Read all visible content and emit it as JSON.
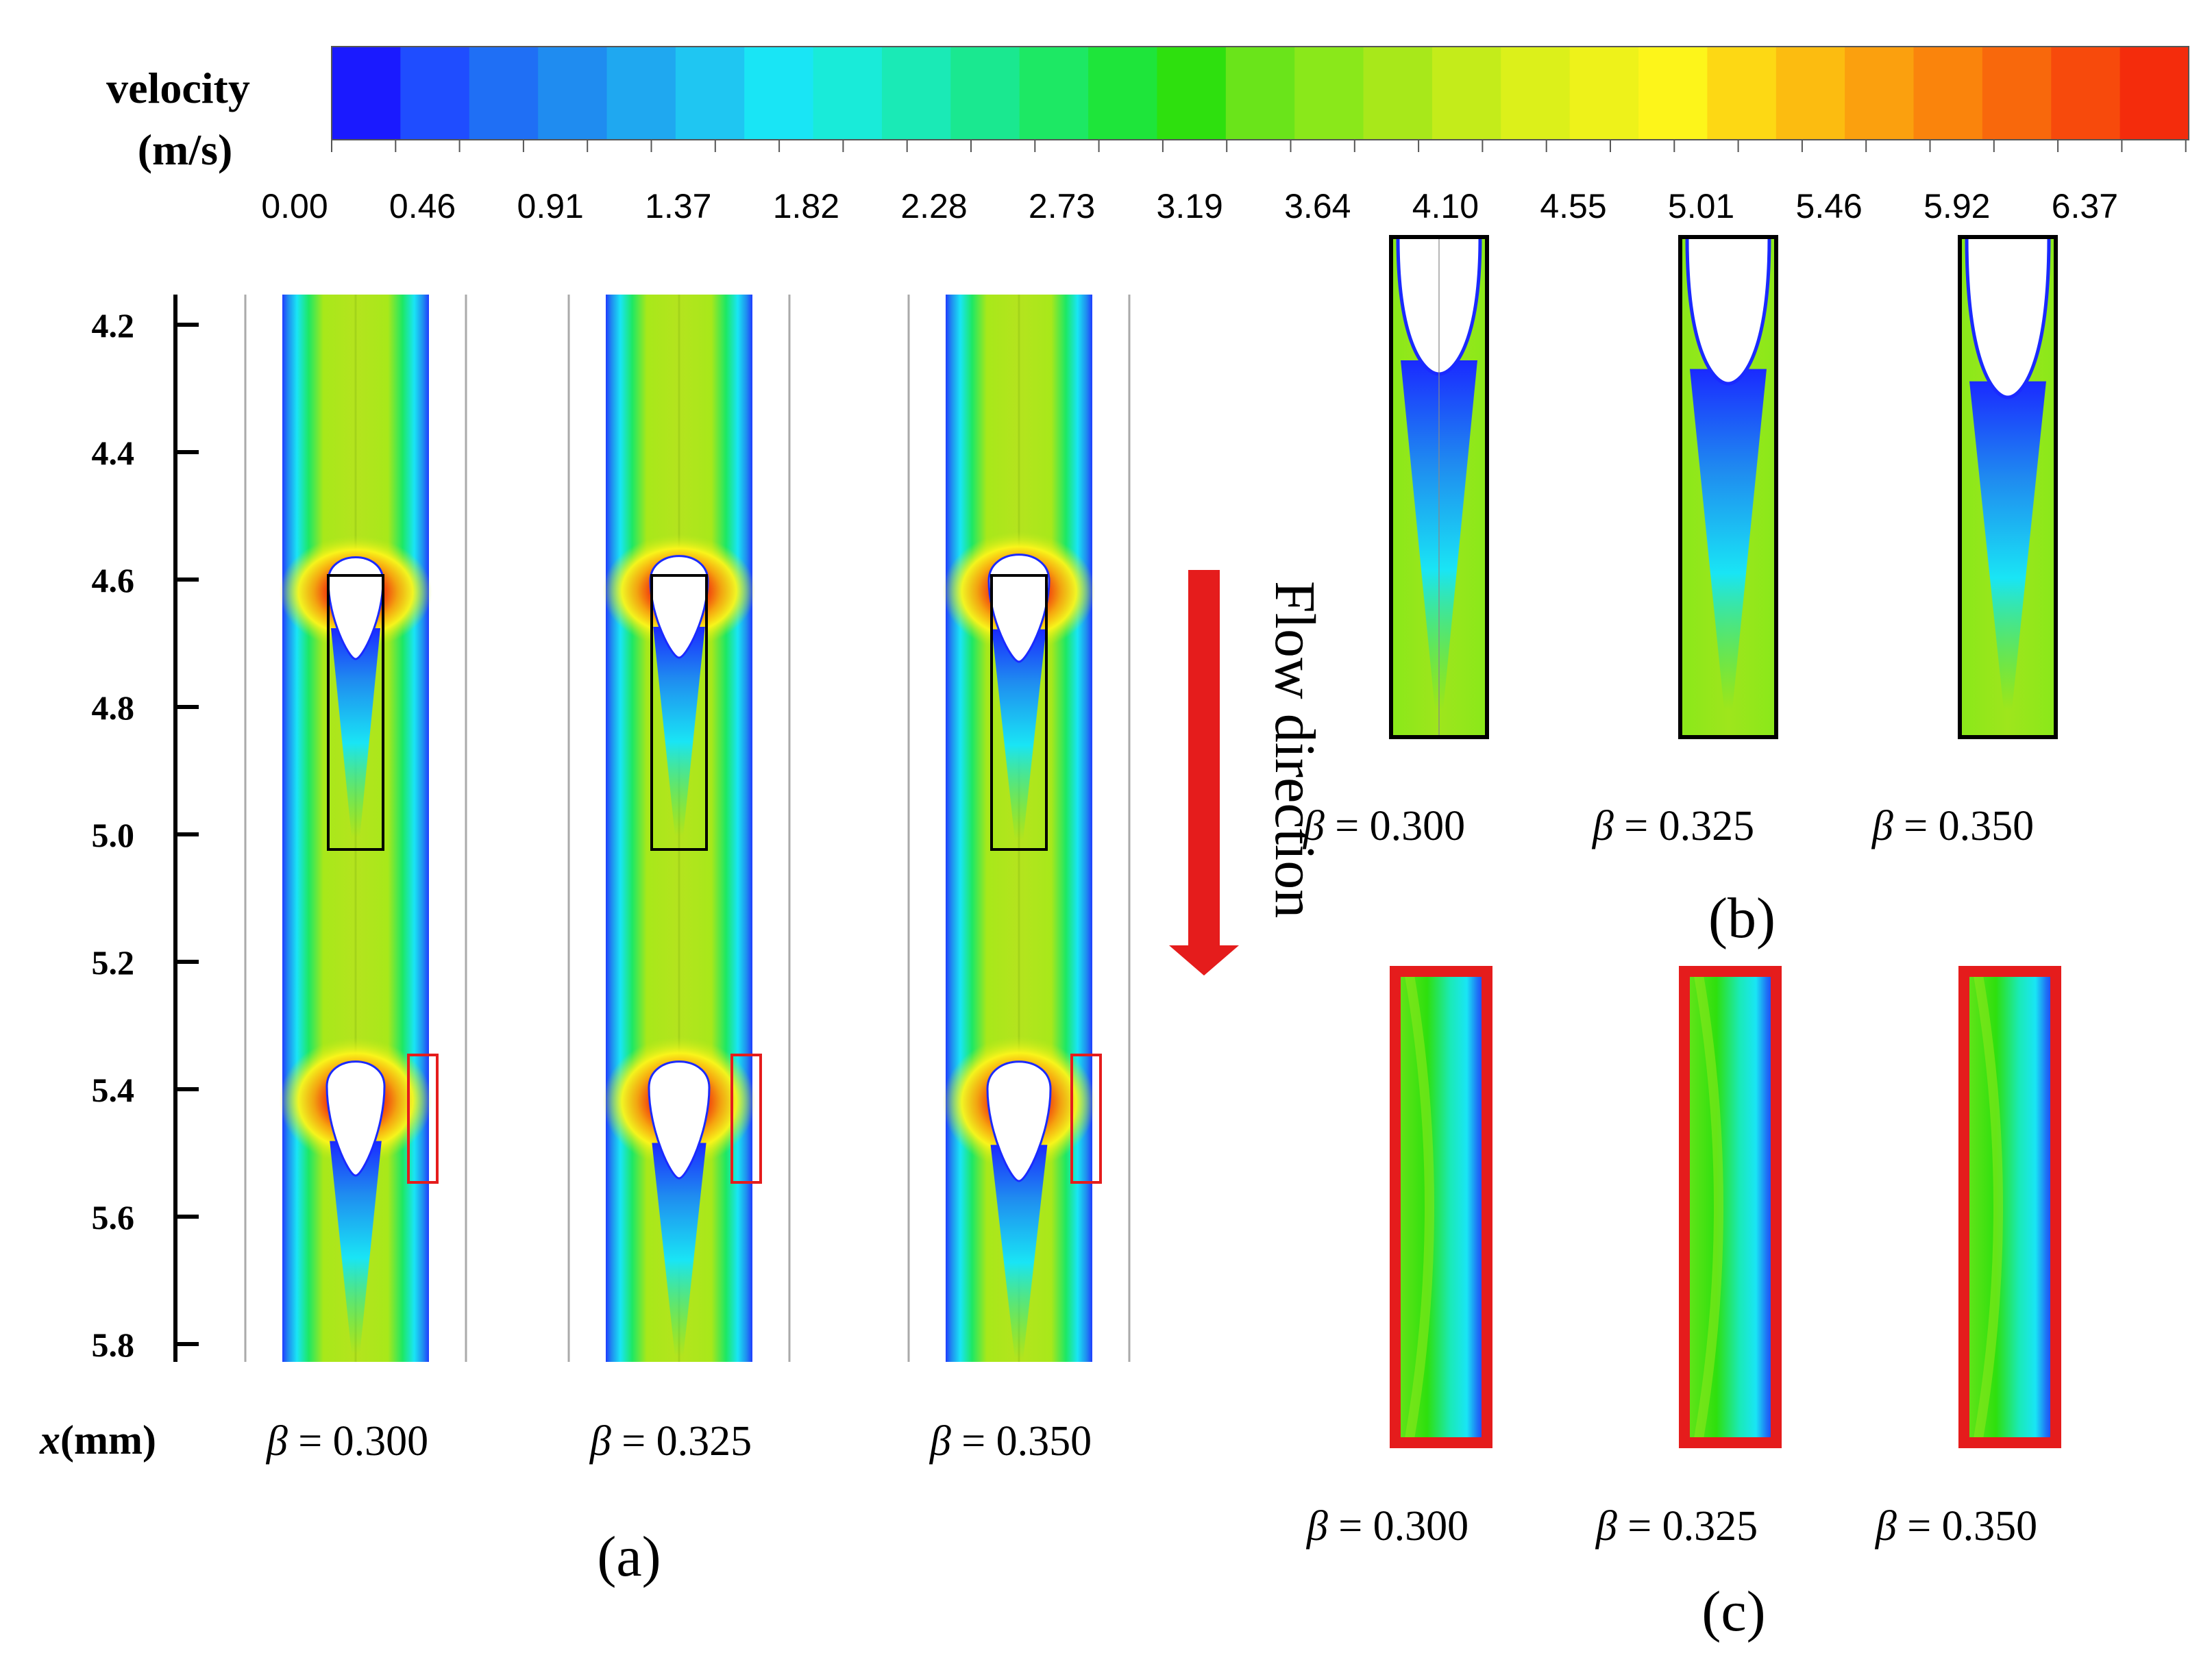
{
  "colorbar": {
    "title_line1": "velocity",
    "title_line2": "(m/s)",
    "ticks": [
      "0.00",
      "0.46",
      "0.91",
      "1.37",
      "1.82",
      "2.28",
      "2.73",
      "3.19",
      "3.64",
      "4.10",
      "4.55",
      "5.01",
      "5.46",
      "5.92",
      "6.37"
    ],
    "colors": [
      "#1a1aff",
      "#1f4dff",
      "#1f6ff5",
      "#1f8cf0",
      "#1fa8f0",
      "#1fc6f2",
      "#19e5f5",
      "#19ebd9",
      "#1aeab6",
      "#1ae890",
      "#1de864",
      "#1ee53a",
      "#2ee00e",
      "#6ae41a",
      "#8ae81a",
      "#a8e81a",
      "#c4ec1a",
      "#dcf01a",
      "#eef21a",
      "#fdf51a",
      "#fdd814",
      "#fcbc10",
      "#fba00e",
      "#fa840c",
      "#f8680c",
      "#f74a0c",
      "#f42c0c"
    ]
  },
  "axis": {
    "label_var": "x",
    "label_unit": "(mm)",
    "ticks": [
      "4.2",
      "4.4",
      "4.6",
      "4.8",
      "5.0",
      "5.2",
      "5.4",
      "5.6",
      "5.8"
    ]
  },
  "panel_a": {
    "label": "(a)",
    "columns": [
      {
        "beta_symbol": "β",
        "beta_text": " = 0.300"
      },
      {
        "beta_symbol": "β",
        "beta_text": " = 0.325"
      },
      {
        "beta_symbol": "β",
        "beta_text": " = 0.350"
      }
    ]
  },
  "flow": {
    "label": "Flow direction",
    "arrow_color": "#e51c1c"
  },
  "panel_b": {
    "label": "(b)",
    "columns": [
      {
        "beta_symbol": "β",
        "beta_text": " = 0.300"
      },
      {
        "beta_symbol": "β",
        "beta_text": " = 0.325"
      },
      {
        "beta_symbol": "β",
        "beta_text": " = 0.350"
      }
    ]
  },
  "panel_c": {
    "label": "(c)",
    "columns": [
      {
        "beta_symbol": "β",
        "beta_text": " = 0.300"
      },
      {
        "beta_symbol": "β",
        "beta_text": " = 0.325"
      },
      {
        "beta_symbol": "β",
        "beta_text": " = 0.350"
      }
    ]
  }
}
